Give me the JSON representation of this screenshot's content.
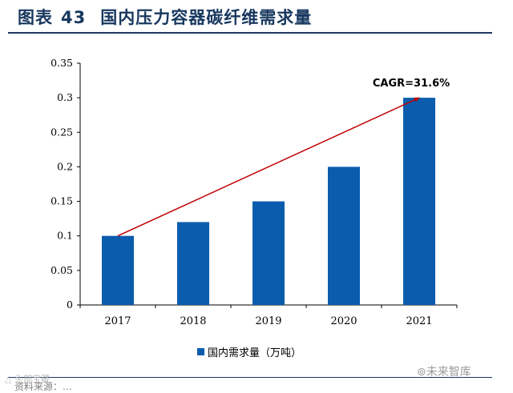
{
  "figure": {
    "label": "图表",
    "number": "43",
    "title": "国内压力容器碳纤维需求量"
  },
  "chart_data": {
    "type": "bar",
    "categories": [
      "2017",
      "2018",
      "2019",
      "2020",
      "2021"
    ],
    "series": [
      {
        "name": "国内需求量（万吨）",
        "values": [
          0.1,
          0.12,
          0.15,
          0.2,
          0.3
        ],
        "color": "#0b5cad"
      }
    ],
    "ylim": [
      0,
      0.35
    ],
    "yticks": [
      "0",
      "0.05",
      "0.1",
      "0.15",
      "0.2",
      "0.25",
      "0.3",
      "0.35"
    ],
    "annotation": {
      "text": "CAGR=31.6%",
      "from": "2017",
      "to": "2021",
      "color": "#c00000"
    },
    "grid": false,
    "legend_position": "bottom"
  },
  "footer": {
    "source": "资料来源：…",
    "watermark_left": "△ 头部宝藏",
    "watermark_right": "⊚未来智库"
  }
}
